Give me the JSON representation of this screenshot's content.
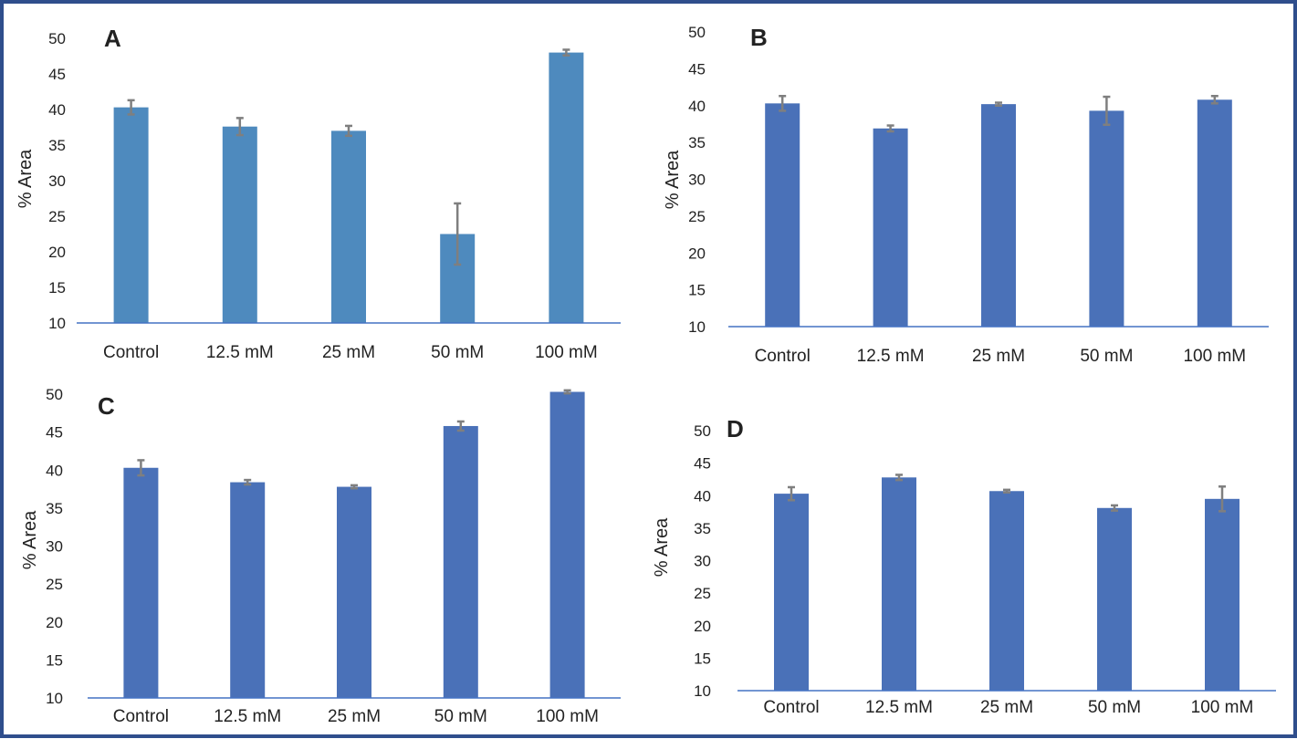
{
  "figure": {
    "frame_color": "#2f4e8c"
  },
  "chart_data": [
    {
      "type": "bar",
      "panel_label": "A",
      "ylabel": "% Area",
      "xlabel": "",
      "categories": [
        "Control",
        "12.5 mM",
        "25 mM",
        "50 mM",
        "100 mM"
      ],
      "values": [
        40.3,
        37.6,
        37.0,
        22.5,
        48.0
      ],
      "errors": [
        1.0,
        1.2,
        0.7,
        4.3,
        0.4
      ],
      "ylim": [
        10,
        50
      ],
      "yticks": [
        10,
        15,
        20,
        25,
        30,
        35,
        40,
        45,
        50
      ],
      "bar_color": "#4e8abe",
      "axis_color": "#4472c4",
      "error_color": "#7f7f7f",
      "grid": false
    },
    {
      "type": "bar",
      "panel_label": "B",
      "ylabel": "% Area",
      "xlabel": "",
      "categories": [
        "Control",
        "12.5 mM",
        "25 mM",
        "50 mM",
        "100 mM"
      ],
      "values": [
        40.3,
        36.9,
        40.2,
        39.3,
        40.8
      ],
      "errors": [
        1.0,
        0.4,
        0.2,
        1.9,
        0.5
      ],
      "ylim": [
        10,
        50
      ],
      "yticks": [
        10,
        15,
        20,
        25,
        30,
        35,
        40,
        45,
        50
      ],
      "bar_color": "#4a71b8",
      "axis_color": "#4472c4",
      "error_color": "#7f7f7f",
      "grid": false
    },
    {
      "type": "bar",
      "panel_label": "C",
      "ylabel": "% Area",
      "xlabel": "",
      "categories": [
        "Control",
        "12.5 mM",
        "25 mM",
        "50 mM",
        "100 mM"
      ],
      "values": [
        40.3,
        38.4,
        37.8,
        45.8,
        50.3
      ],
      "errors": [
        1.0,
        0.3,
        0.2,
        0.6,
        0.2
      ],
      "ylim": [
        10,
        50
      ],
      "yticks": [
        10,
        15,
        20,
        25,
        30,
        35,
        40,
        45,
        50
      ],
      "bar_color": "#4a71b8",
      "axis_color": "#4472c4",
      "error_color": "#7f7f7f",
      "grid": false
    },
    {
      "type": "bar",
      "panel_label": "D",
      "ylabel": "% Area",
      "xlabel": "",
      "categories": [
        "Control",
        "12.5 mM",
        "25 mM",
        "50 mM",
        "100 mM"
      ],
      "values": [
        40.3,
        42.8,
        40.7,
        38.1,
        39.5
      ],
      "errors": [
        1.0,
        0.4,
        0.2,
        0.4,
        1.9
      ],
      "ylim": [
        10,
        50
      ],
      "yticks": [
        10,
        15,
        20,
        25,
        30,
        35,
        40,
        45,
        50
      ],
      "bar_color": "#4a71b8",
      "axis_color": "#4472c4",
      "error_color": "#7f7f7f",
      "grid": false
    }
  ]
}
